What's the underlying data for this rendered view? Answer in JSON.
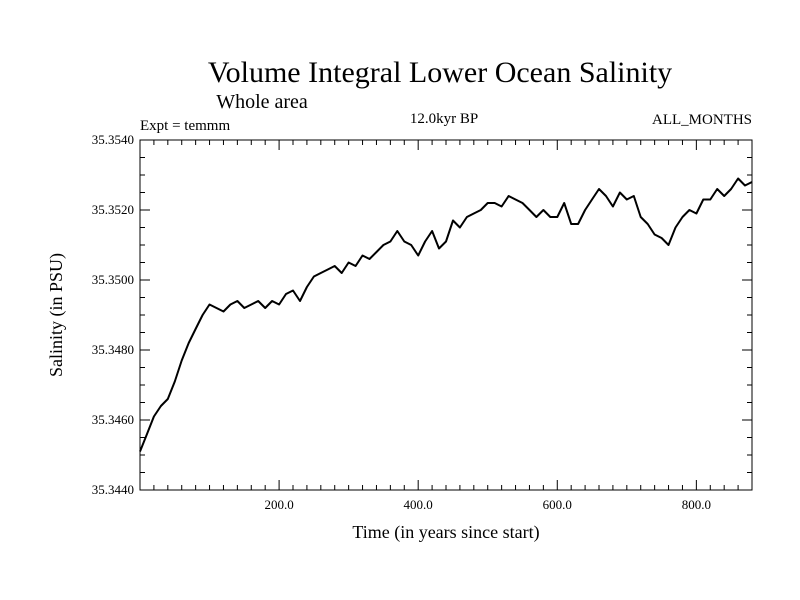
{
  "chart_data": {
    "type": "line",
    "title": "Volume Integral Lower Ocean Salinity",
    "subtitle": "Whole area",
    "experiment": "Expt = temmm",
    "period": "12.0kyr BP",
    "months": "ALL_MONTHS",
    "xlabel": "Time (in years since start)",
    "ylabel": "Salinity (in PSU)",
    "xlim": [
      0,
      880
    ],
    "ylim": [
      35.344,
      35.354
    ],
    "x_ticks": [
      200,
      400,
      600,
      800
    ],
    "x_tick_labels": [
      "200.0",
      "400.0",
      "600.0",
      "800.0"
    ],
    "y_ticks": [
      35.344,
      35.346,
      35.348,
      35.35,
      35.352,
      35.354
    ],
    "y_tick_labels": [
      "35.3440",
      "35.3460",
      "35.3480",
      "35.3500",
      "35.3520",
      "35.3540"
    ],
    "series": [
      {
        "name": "Salinity",
        "color": "#000000",
        "x": [
          0,
          10,
          20,
          30,
          40,
          50,
          60,
          70,
          80,
          90,
          100,
          110,
          120,
          130,
          140,
          150,
          160,
          170,
          180,
          190,
          200,
          210,
          220,
          230,
          240,
          250,
          260,
          270,
          280,
          290,
          300,
          310,
          320,
          330,
          340,
          350,
          360,
          370,
          380,
          390,
          400,
          410,
          420,
          430,
          440,
          450,
          460,
          470,
          480,
          490,
          500,
          510,
          520,
          530,
          540,
          550,
          560,
          570,
          580,
          590,
          600,
          610,
          620,
          630,
          640,
          650,
          660,
          670,
          680,
          690,
          700,
          710,
          720,
          730,
          740,
          750,
          760,
          770,
          780,
          790,
          800,
          810,
          820,
          830,
          840,
          850,
          860,
          870,
          880
        ],
        "values": [
          35.3451,
          35.3456,
          35.3461,
          35.3464,
          35.3466,
          35.3471,
          35.3477,
          35.3482,
          35.3486,
          35.349,
          35.3493,
          35.3492,
          35.3491,
          35.3493,
          35.3494,
          35.3492,
          35.3493,
          35.3494,
          35.3492,
          35.3494,
          35.3493,
          35.3496,
          35.3497,
          35.3494,
          35.3498,
          35.3501,
          35.3502,
          35.3503,
          35.3504,
          35.3502,
          35.3505,
          35.3504,
          35.3507,
          35.3506,
          35.3508,
          35.351,
          35.3511,
          35.3514,
          35.3511,
          35.351,
          35.3507,
          35.3511,
          35.3514,
          35.3509,
          35.3511,
          35.3517,
          35.3515,
          35.3518,
          35.3519,
          35.352,
          35.3522,
          35.3522,
          35.3521,
          35.3524,
          35.3523,
          35.3522,
          35.352,
          35.3518,
          35.352,
          35.3518,
          35.3518,
          35.3522,
          35.3516,
          35.3516,
          35.352,
          35.3523,
          35.3526,
          35.3524,
          35.3521,
          35.3525,
          35.3523,
          35.3524,
          35.3518,
          35.3516,
          35.3513,
          35.3512,
          35.351,
          35.3515,
          35.3518,
          35.352,
          35.3519,
          35.3523,
          35.3523,
          35.3526,
          35.3524,
          35.3526,
          35.3529,
          35.3527,
          35.3528
        ]
      }
    ]
  }
}
